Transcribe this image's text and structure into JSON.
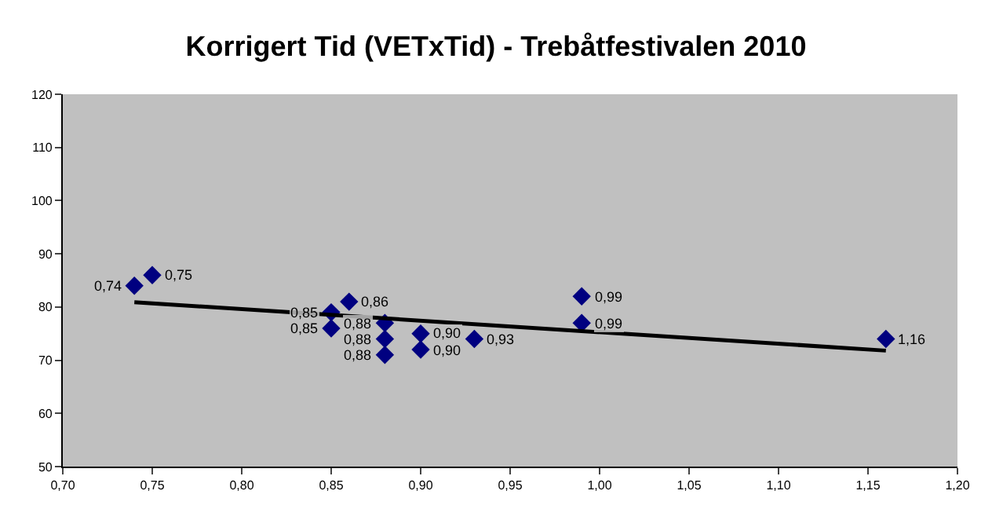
{
  "chart_data": {
    "type": "scatter",
    "title": "Korrigert Tid (VETxTid) - Trebåtfestivalen 2010",
    "xlim": [
      0.7,
      1.2
    ],
    "xticks": [
      {
        "value": 0.7,
        "label": "0,70"
      },
      {
        "value": 0.75,
        "label": "0,75"
      },
      {
        "value": 0.8,
        "label": "0,80"
      },
      {
        "value": 0.85,
        "label": "0,85"
      },
      {
        "value": 0.9,
        "label": "0,90"
      },
      {
        "value": 0.95,
        "label": "0,95"
      },
      {
        "value": 1.0,
        "label": "1,00"
      },
      {
        "value": 1.05,
        "label": "1,05"
      },
      {
        "value": 1.1,
        "label": "1,10"
      },
      {
        "value": 1.15,
        "label": "1,15"
      },
      {
        "value": 1.2,
        "label": "1,20"
      }
    ],
    "ylim": [
      50,
      120
    ],
    "yticks": [
      50,
      60,
      70,
      80,
      90,
      100,
      110,
      120
    ],
    "grid": false,
    "marker": "diamond",
    "series": [
      {
        "color": "#000080",
        "x": [
          0.74,
          0.75,
          0.85,
          0.85,
          0.86,
          0.88,
          0.88,
          0.88,
          0.9,
          0.9,
          0.93,
          0.99,
          0.99,
          1.16
        ],
        "values": [
          84,
          86,
          79,
          76,
          81,
          77,
          74,
          71,
          75,
          72,
          74,
          82,
          77,
          74
        ]
      },
      {
        "type": "line",
        "color": "#000000",
        "x": [
          0.74,
          1.16
        ],
        "values": [
          80.9,
          71.8
        ],
        "line_style": "solid",
        "marker": "none"
      }
    ],
    "annotations": [
      {
        "text": "0,74",
        "x": 0.74,
        "y": 84
      },
      {
        "text": "0,75",
        "x": 0.75,
        "y": 86
      },
      {
        "text": "0,85",
        "x": 0.85,
        "y": 79
      },
      {
        "text": "0,85",
        "x": 0.85,
        "y": 76
      },
      {
        "text": "0,86",
        "x": 0.86,
        "y": 81
      },
      {
        "text": "0,88",
        "x": 0.88,
        "y": 77
      },
      {
        "text": "0,88",
        "x": 0.88,
        "y": 74
      },
      {
        "text": "0,88",
        "x": 0.88,
        "y": 71
      },
      {
        "text": "0,90",
        "x": 0.9,
        "y": 75
      },
      {
        "text": "0,90",
        "x": 0.9,
        "y": 72
      },
      {
        "text": "0,93",
        "x": 0.93,
        "y": 74
      },
      {
        "text": "0,99",
        "x": 0.99,
        "y": 82
      },
      {
        "text": "0,99",
        "x": 0.99,
        "y": 77
      },
      {
        "text": "1,16",
        "x": 1.16,
        "y": 74
      }
    ]
  }
}
